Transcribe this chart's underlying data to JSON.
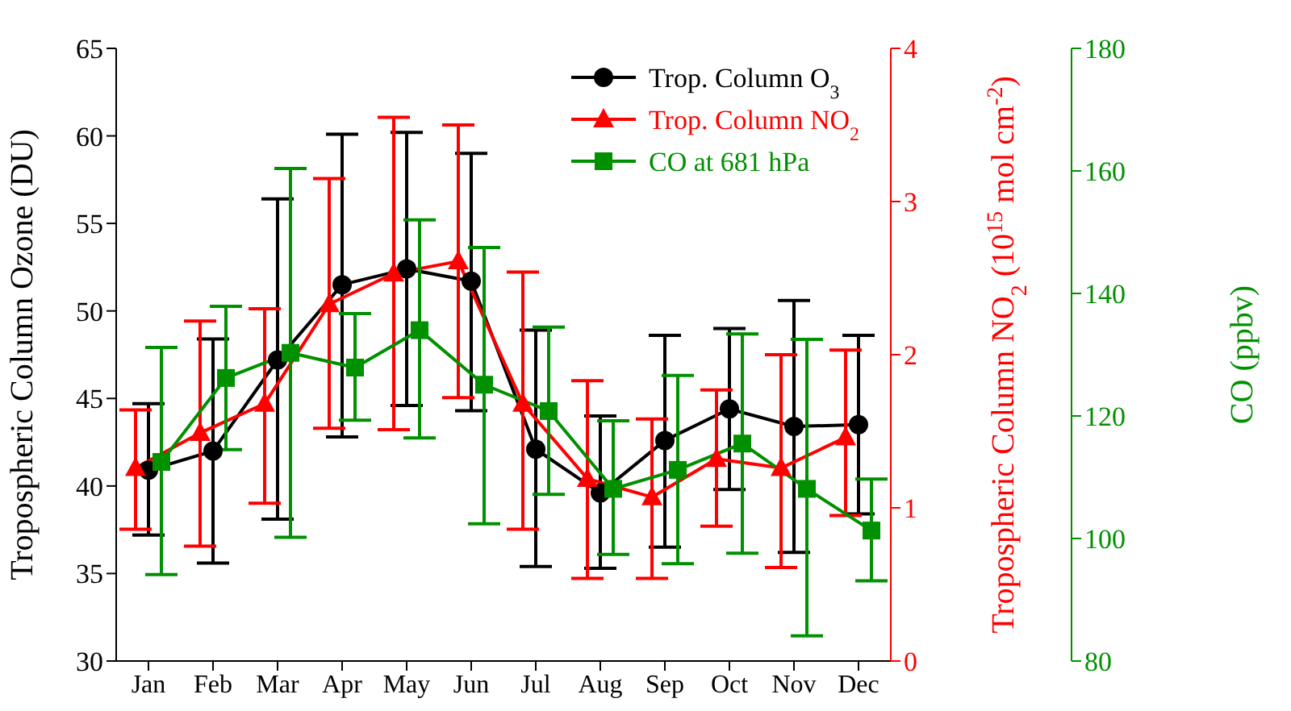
{
  "chart_data": {
    "type": "line",
    "categories": [
      "Jan",
      "Feb",
      "Mar",
      "Apr",
      "May",
      "Jun",
      "Jul",
      "Aug",
      "Sep",
      "Oct",
      "Nov",
      "Dec"
    ],
    "ylabel": "Tropospheric Column Ozone (DU)",
    "y2label": "Tropospheric Column NO$_{2}$ (10$^{15}$ mol cm$^{-2}$)",
    "y3label": "CO (ppbv)",
    "ylim": [
      30,
      65
    ],
    "yticks": [
      30,
      35,
      40,
      45,
      50,
      55,
      60,
      65
    ],
    "y2lim": [
      0,
      4
    ],
    "y2ticks": [
      0,
      1,
      2,
      3,
      4
    ],
    "y3lim": [
      80,
      180
    ],
    "y3ticks": [
      80,
      100,
      120,
      140,
      160,
      180
    ],
    "grid": false,
    "legend": "top right",
    "series": [
      {
        "name": "Trop. Column O$_{3}$",
        "color": "#000000",
        "marker": "circle",
        "values": [
          40.9,
          42.0,
          47.2,
          51.5,
          52.4,
          51.7,
          42.1,
          39.6,
          42.6,
          44.4,
          43.4,
          43.5
        ],
        "errors": [
          [
            37.2,
            44.7
          ],
          [
            35.6,
            48.4
          ],
          [
            38.1,
            56.4
          ],
          [
            42.8,
            60.1
          ],
          [
            44.6,
            60.2
          ],
          [
            44.3,
            59.0
          ],
          [
            35.4,
            48.9
          ],
          [
            35.3,
            44.0
          ],
          [
            36.5,
            48.6
          ],
          [
            39.8,
            49.0
          ],
          [
            36.2,
            50.6
          ],
          [
            38.4,
            48.6
          ]
        ]
      },
      {
        "name": "Trop. Column NO$_{2}$",
        "color": "#ff0000",
        "marker": "triangle",
        "axis": "y2",
        "values": [
          1.26,
          1.49,
          1.68,
          2.33,
          2.53,
          2.61,
          1.68,
          1.19,
          1.07,
          1.32,
          1.26,
          1.46
        ],
        "errors": [
          [
            0.86,
            1.64
          ],
          [
            0.75,
            2.22
          ],
          [
            1.03,
            2.3
          ],
          [
            1.52,
            3.15
          ],
          [
            1.51,
            3.55
          ],
          [
            1.72,
            3.5
          ],
          [
            0.86,
            2.54
          ],
          [
            0.54,
            1.83
          ],
          [
            0.54,
            1.58
          ],
          [
            0.88,
            1.77
          ],
          [
            0.61,
            2.0
          ],
          [
            0.95,
            2.03
          ]
        ]
      },
      {
        "name": "CO at 681 hPa",
        "color": "#009000",
        "marker": "square",
        "axis": "y3",
        "values": [
          112.5,
          126.2,
          130.3,
          127.9,
          134.0,
          125.1,
          120.8,
          108.1,
          111.2,
          115.5,
          108.1,
          101.3
        ],
        "errors": [
          [
            94.1,
            131.2
          ],
          [
            114.5,
            137.9
          ],
          [
            100.2,
            160.4
          ],
          [
            119.3,
            136.7
          ],
          [
            116.4,
            152.0
          ],
          [
            102.4,
            147.5
          ],
          [
            107.2,
            134.5
          ],
          [
            97.4,
            119.2
          ],
          [
            95.9,
            126.6
          ],
          [
            97.6,
            133.4
          ],
          [
            84.1,
            132.5
          ],
          [
            93.1,
            109.7
          ]
        ]
      }
    ]
  }
}
